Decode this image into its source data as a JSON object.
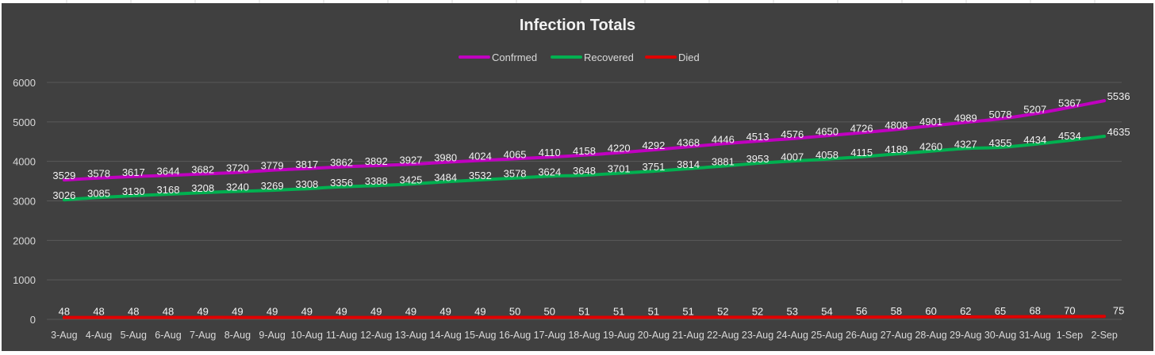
{
  "chart_data": {
    "type": "line",
    "title": "Infection Totals",
    "categories": [
      "3-Aug",
      "4-Aug",
      "5-Aug",
      "6-Aug",
      "7-Aug",
      "8-Aug",
      "9-Aug",
      "10-Aug",
      "11-Aug",
      "12-Aug",
      "13-Aug",
      "14-Aug",
      "15-Aug",
      "16-Aug",
      "17-Aug",
      "18-Aug",
      "19-Aug",
      "20-Aug",
      "21-Aug",
      "22-Aug",
      "23-Aug",
      "24-Aug",
      "25-Aug",
      "26-Aug",
      "27-Aug",
      "28-Aug",
      "29-Aug",
      "30-Aug",
      "31-Aug",
      "1-Sep",
      "2-Sep"
    ],
    "series": [
      {
        "name": "Confrmed",
        "color": "#c000c0",
        "values": [
          3529,
          3578,
          3617,
          3644,
          3682,
          3720,
          3779,
          3817,
          3862,
          3892,
          3927,
          3980,
          4024,
          4065,
          4110,
          4158,
          4220,
          4292,
          4368,
          4446,
          4513,
          4576,
          4650,
          4726,
          4808,
          4901,
          4989,
          5078,
          5207,
          5367,
          5536
        ]
      },
      {
        "name": "Recovered",
        "color": "#00b050",
        "values": [
          3026,
          3085,
          3130,
          3168,
          3208,
          3240,
          3269,
          3308,
          3356,
          3388,
          3425,
          3484,
          3532,
          3578,
          3624,
          3648,
          3701,
          3751,
          3814,
          3881,
          3953,
          4007,
          4058,
          4115,
          4189,
          4260,
          4327,
          4355,
          4434,
          4534,
          4635
        ]
      },
      {
        "name": "Died",
        "color": "#e00000",
        "values": [
          48,
          48,
          48,
          48,
          49,
          49,
          49,
          49,
          49,
          49,
          49,
          49,
          49,
          50,
          50,
          51,
          51,
          51,
          51,
          52,
          52,
          53,
          54,
          56,
          58,
          60,
          62,
          65,
          68,
          70,
          75
        ]
      }
    ],
    "yticks": [
      0,
      1000,
      2000,
      3000,
      4000,
      5000,
      6000
    ],
    "ylim": [
      0,
      6000
    ],
    "grid": true,
    "legend": "top-center",
    "background": "#404040",
    "label_color": "#ffffff"
  }
}
